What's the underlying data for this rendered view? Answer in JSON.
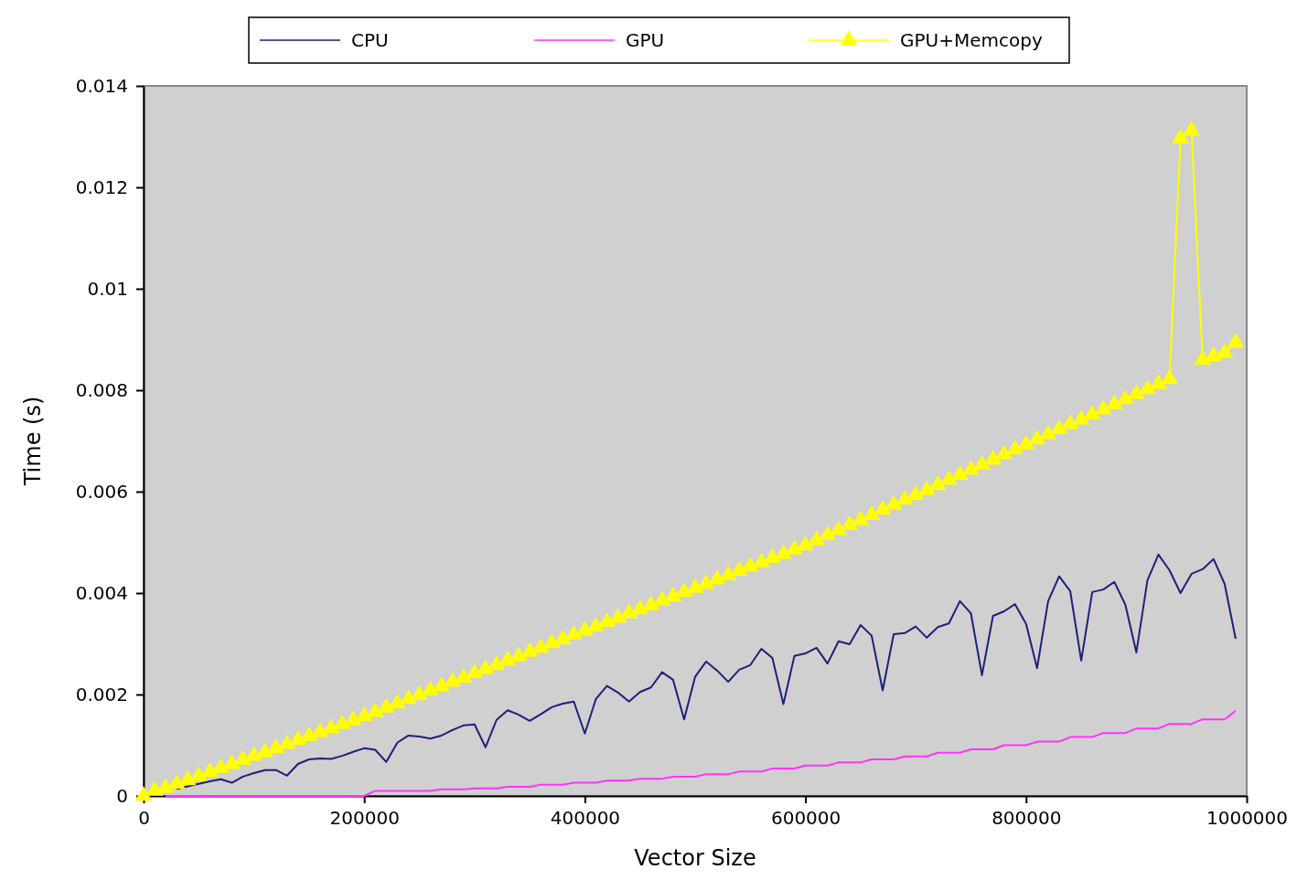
{
  "chart_data": {
    "type": "line",
    "xlabel": "Vector Size",
    "ylabel": "Time (s)",
    "x": [
      0,
      10000,
      20000,
      30000,
      40000,
      50000,
      60000,
      70000,
      80000,
      90000,
      100000,
      110000,
      120000,
      130000,
      140000,
      150000,
      160000,
      170000,
      180000,
      190000,
      200000,
      210000,
      220000,
      230000,
      240000,
      250000,
      260000,
      270000,
      280000,
      290000,
      300000,
      310000,
      320000,
      330000,
      340000,
      350000,
      360000,
      370000,
      380000,
      390000,
      400000,
      410000,
      420000,
      430000,
      440000,
      450000,
      460000,
      470000,
      480000,
      490000,
      500000,
      510000,
      520000,
      530000,
      540000,
      550000,
      560000,
      570000,
      580000,
      590000,
      600000,
      610000,
      620000,
      630000,
      640000,
      650000,
      660000,
      670000,
      680000,
      690000,
      700000,
      710000,
      720000,
      730000,
      740000,
      750000,
      760000,
      770000,
      780000,
      790000,
      800000,
      810000,
      820000,
      830000,
      840000,
      850000,
      860000,
      870000,
      880000,
      890000,
      900000,
      910000,
      920000,
      930000,
      940000,
      950000,
      960000,
      970000,
      980000,
      990000
    ],
    "xlim": [
      0,
      1000000
    ],
    "xticks": [
      0,
      200000,
      400000,
      600000,
      800000,
      1000000
    ],
    "ylim": [
      0,
      0.014
    ],
    "yticks": [
      0,
      0.002,
      0.004,
      0.006,
      0.008,
      0.01,
      0.012,
      0.014
    ],
    "grid": false,
    "legend": "top",
    "series": [
      {
        "name": "CPU",
        "color": "#1f1f7a",
        "marker": "none",
        "values": [
          null,
          null,
          null,
          0.00014,
          0.00019,
          0.00024,
          0.00029,
          0.00033,
          0.00026,
          0.00038,
          0.00045,
          0.00051,
          0.00051,
          0.0004,
          0.00063,
          0.00072,
          0.00074,
          0.00073,
          0.00079,
          0.00087,
          0.00094,
          0.00091,
          0.00067,
          0.00105,
          0.00119,
          0.00117,
          0.00113,
          0.00119,
          0.0013,
          0.00139,
          0.00141,
          0.00096,
          0.0015,
          0.00169,
          0.0016,
          0.00148,
          0.00161,
          0.00175,
          0.00182,
          0.00186,
          0.00123,
          0.00191,
          0.00217,
          0.00204,
          0.00186,
          0.00205,
          0.00214,
          0.00244,
          0.00229,
          0.00151,
          0.00235,
          0.00265,
          0.00247,
          0.00225,
          0.00249,
          0.00258,
          0.0029,
          0.00272,
          0.00181,
          0.00276,
          0.00281,
          0.00292,
          0.00261,
          0.00305,
          0.00299,
          0.00337,
          0.00316,
          0.00208,
          0.00319,
          0.00321,
          0.00334,
          0.00312,
          0.00333,
          0.0034,
          0.00384,
          0.0036,
          0.00238,
          0.00355,
          0.00364,
          0.00378,
          0.00339,
          0.00252,
          0.00384,
          0.00433,
          0.00404,
          0.00267,
          0.00402,
          0.00407,
          0.00422,
          0.00377,
          0.00283,
          0.00425,
          0.00476,
          0.00445,
          0.004,
          0.00438,
          0.00447,
          0.00467,
          0.00418,
          0.0031
        ]
      },
      {
        "name": "GPU",
        "color": "#ff33ff",
        "marker": "none",
        "values": [
          null,
          null,
          0,
          0,
          0,
          0,
          0,
          0,
          0,
          0,
          0,
          0,
          0,
          0,
          0,
          0,
          0,
          0,
          0,
          0,
          0,
          0.0001,
          0.0001,
          0.0001,
          0.0001,
          0.0001,
          0.0001,
          0.00013,
          0.00013,
          0.00013,
          0.00015,
          0.00015,
          0.00015,
          0.00018,
          0.00018,
          0.00018,
          0.00022,
          0.00022,
          0.00022,
          0.00026,
          0.00026,
          0.00026,
          0.0003,
          0.0003,
          0.0003,
          0.00034,
          0.00034,
          0.00034,
          0.00038,
          0.00038,
          0.00038,
          0.00043,
          0.00043,
          0.00043,
          0.00048,
          0.00048,
          0.00048,
          0.00054,
          0.00054,
          0.00054,
          0.0006,
          0.0006,
          0.0006,
          0.00066,
          0.00066,
          0.00066,
          0.00072,
          0.00072,
          0.00072,
          0.00078,
          0.00078,
          0.00078,
          0.00085,
          0.00085,
          0.00085,
          0.00092,
          0.00092,
          0.00092,
          0.001,
          0.001,
          0.001,
          0.00107,
          0.00107,
          0.00107,
          0.00116,
          0.00116,
          0.00116,
          0.00124,
          0.00124,
          0.00124,
          0.00133,
          0.00133,
          0.00133,
          0.00142,
          0.00142,
          0.00142,
          0.00151,
          0.00151,
          0.00151,
          0.00168
        ]
      },
      {
        "name": "GPU+Memcopy",
        "color": "#ffff00",
        "marker": "triangle",
        "values": [
          0,
          0.0001,
          0.00016,
          0.00024,
          0.00031,
          0.00039,
          0.00047,
          0.00055,
          0.00063,
          0.00071,
          0.00079,
          0.00086,
          0.00094,
          0.00102,
          0.0011,
          0.00118,
          0.00126,
          0.00133,
          0.00141,
          0.00149,
          0.00157,
          0.00165,
          0.00174,
          0.00182,
          0.00191,
          0.00199,
          0.00208,
          0.00216,
          0.00225,
          0.00233,
          0.00242,
          0.0025,
          0.00258,
          0.00267,
          0.00275,
          0.00284,
          0.00292,
          0.00301,
          0.00309,
          0.00318,
          0.00326,
          0.00334,
          0.00343,
          0.00351,
          0.0036,
          0.00368,
          0.00376,
          0.00385,
          0.00393,
          0.00402,
          0.0041,
          0.00418,
          0.00427,
          0.00435,
          0.00444,
          0.00452,
          0.0046,
          0.00469,
          0.00477,
          0.00486,
          0.00494,
          0.00504,
          0.00514,
          0.00524,
          0.00534,
          0.00544,
          0.00554,
          0.00564,
          0.00574,
          0.00584,
          0.00593,
          0.00603,
          0.00613,
          0.00623,
          0.00633,
          0.00643,
          0.00653,
          0.00663,
          0.00673,
          0.00683,
          0.00693,
          0.00703,
          0.00713,
          0.00723,
          0.00733,
          0.00742,
          0.00752,
          0.00762,
          0.00772,
          0.00782,
          0.00792,
          0.00802,
          0.00812,
          0.00822,
          0.01296,
          0.01312,
          0.0086,
          0.00867,
          0.00873,
          0.00894
        ]
      }
    ]
  }
}
